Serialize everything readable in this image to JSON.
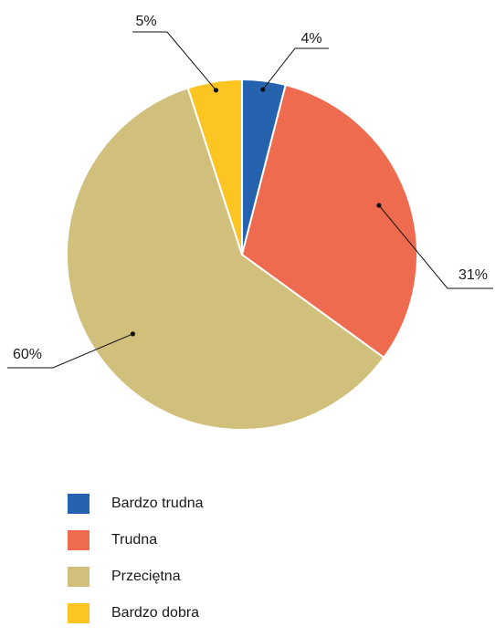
{
  "chart_data": {
    "type": "pie",
    "title": "",
    "slices": [
      {
        "label": "Bardzo trudna",
        "value": 4,
        "value_label": "4%",
        "color": "#2563ae"
      },
      {
        "label": "Trudna",
        "value": 31,
        "value_label": "31%",
        "color": "#ef6b50"
      },
      {
        "label": "Przeciętna",
        "value": 60,
        "value_label": "60%",
        "color": "#d1bf7c"
      },
      {
        "label": "Bardzo dobra",
        "value": 5,
        "value_label": "5%",
        "color": "#fdc521"
      }
    ],
    "legend_position": "bottom-left",
    "start_angle_deg": 0,
    "direction": "clockwise"
  }
}
